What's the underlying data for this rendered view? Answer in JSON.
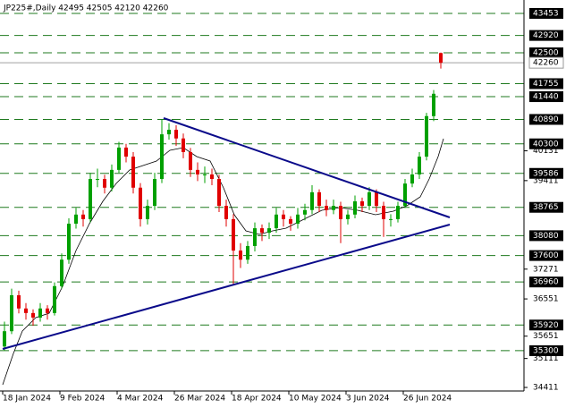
{
  "chart_data": {
    "type": "candlestick",
    "title": "JP225#,Daily  42495 42505 42120 42260",
    "categories": [
      "18 Jan 2024",
      null,
      null,
      null,
      null,
      null,
      null,
      null,
      "9 Feb 2024",
      null,
      null,
      null,
      null,
      null,
      null,
      null,
      "4 Mar 2024",
      null,
      null,
      null,
      null,
      null,
      null,
      null,
      "26 Mar 2024",
      null,
      null,
      null,
      null,
      null,
      null,
      null,
      "18 Apr 2024",
      null,
      null,
      null,
      null,
      null,
      null,
      null,
      "10 May 2024",
      null,
      null,
      null,
      null,
      null,
      null,
      null,
      "3 Jun 2024",
      null,
      null,
      null,
      null,
      null,
      null,
      null,
      "26 Jun 2024",
      null,
      null,
      null,
      null,
      null
    ],
    "open": [
      35400,
      35770,
      36640,
      36320,
      36210,
      36100,
      36320,
      36210,
      36860,
      37500,
      38370,
      38590,
      38480,
      39450,
      39450,
      39240,
      39670,
      40210,
      39990,
      39240,
      38480,
      38800,
      39450,
      40530,
      40640,
      40430,
      40100,
      39670,
      39560,
      39560,
      39450,
      38800,
      38480,
      37720,
      37500,
      37830,
      38260,
      38150,
      38260,
      38590,
      38480,
      38370,
      38590,
      38700,
      39130,
      38800,
      38700,
      38800,
      38480,
      38590,
      38910,
      38800,
      39130,
      38800,
      38480,
      38480,
      38800,
      39340,
      39560,
      39990,
      40970,
      42495
    ],
    "high": [
      36000,
      36800,
      36750,
      36450,
      36300,
      36450,
      36400,
      36950,
      37650,
      38500,
      38750,
      38700,
      39600,
      39700,
      39550,
      39800,
      40350,
      40300,
      40100,
      39350,
      38950,
      39600,
      40890,
      40800,
      40750,
      40550,
      40200,
      39850,
      39750,
      39700,
      39550,
      38950,
      38600,
      37900,
      37950,
      38400,
      38350,
      38400,
      38750,
      38700,
      38550,
      38750,
      38850,
      39300,
      39200,
      38950,
      38950,
      38900,
      38700,
      39050,
      39000,
      39250,
      39200,
      38900,
      38600,
      38900,
      39450,
      39700,
      40100,
      41050,
      41600,
      42505
    ],
    "low": [
      35300,
      35700,
      36200,
      36050,
      35900,
      36000,
      36050,
      36150,
      36800,
      37400,
      38250,
      38300,
      38400,
      39250,
      39100,
      39150,
      39600,
      39850,
      39100,
      38300,
      38350,
      38700,
      39350,
      40400,
      40250,
      39950,
      39500,
      39400,
      39350,
      39300,
      38650,
      38300,
      36900,
      37300,
      37400,
      37700,
      37950,
      38000,
      38150,
      38300,
      38200,
      38250,
      38450,
      38600,
      38650,
      38550,
      38600,
      37900,
      38350,
      38500,
      38650,
      38700,
      38650,
      38050,
      38300,
      38400,
      38750,
      39250,
      39450,
      39900,
      40850,
      42120
    ],
    "close": [
      35770,
      36640,
      36320,
      36210,
      36100,
      36320,
      36210,
      36860,
      37500,
      38370,
      38590,
      38480,
      39450,
      39450,
      39240,
      39670,
      40210,
      39990,
      39240,
      38480,
      38800,
      39450,
      40530,
      40640,
      40430,
      40100,
      39670,
      39560,
      39560,
      39450,
      38800,
      38480,
      37720,
      37500,
      37830,
      38260,
      38150,
      38260,
      38590,
      38480,
      38370,
      38590,
      38700,
      39130,
      38800,
      38700,
      38800,
      38480,
      38590,
      38910,
      38800,
      39130,
      38800,
      38480,
      38480,
      38800,
      39340,
      39560,
      39990,
      40970,
      41510,
      42260
    ],
    "up_color": "#00a000",
    "down_color": "#e00000",
    "level_color": "#1f7a1f",
    "ylim": [
      34325,
      43777
    ],
    "yticks": [
      40131,
      39411,
      37271,
      36551,
      35651,
      35111,
      34411
    ],
    "levels": [
      43453,
      42920,
      42500,
      41755,
      41440,
      40890,
      40300,
      39586,
      38765,
      38080,
      37600,
      36960,
      35920,
      35300
    ],
    "last_price": 42260
  }
}
